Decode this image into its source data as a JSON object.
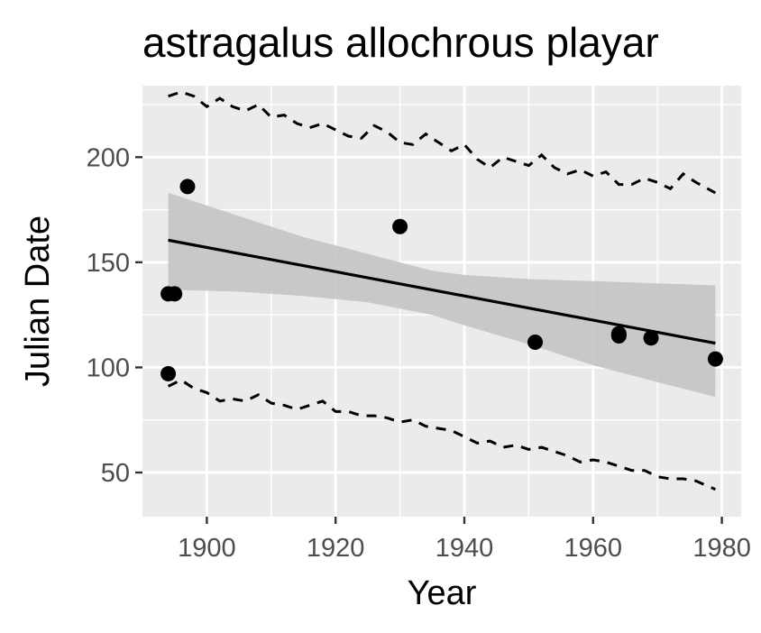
{
  "chart_data": {
    "type": "scatter",
    "title": "astragalus allochrous playar",
    "xlabel": "Year",
    "ylabel": "Julian Date",
    "xlim": [
      1890,
      1983
    ],
    "ylim": [
      29,
      234
    ],
    "x_ticks": [
      1900,
      1920,
      1940,
      1960,
      1980
    ],
    "y_ticks": [
      50,
      100,
      150,
      200
    ],
    "x_tick_labels": [
      "1900",
      "1920",
      "1940",
      "1960",
      "1980"
    ],
    "y_tick_labels": [
      "50",
      "100",
      "150",
      "200"
    ],
    "grid": true,
    "colors": {
      "panel_background": "#ebebeb",
      "grid": "#ffffff",
      "points": "#000000",
      "fit_line": "#000000",
      "ribbon": "#c4c4c4",
      "bounds": "#000000"
    },
    "points": [
      {
        "x": 1894,
        "y": 135
      },
      {
        "x": 1895,
        "y": 135
      },
      {
        "x": 1894,
        "y": 97
      },
      {
        "x": 1897,
        "y": 186
      },
      {
        "x": 1930,
        "y": 167
      },
      {
        "x": 1951,
        "y": 112
      },
      {
        "x": 1964,
        "y": 116
      },
      {
        "x": 1964,
        "y": 115
      },
      {
        "x": 1969,
        "y": 114
      },
      {
        "x": 1979,
        "y": 104
      }
    ],
    "trend_line": {
      "x": [
        1894,
        1979
      ],
      "y": [
        160.5,
        111.5
      ]
    },
    "confidence_band": {
      "x": [
        1894,
        1905,
        1915,
        1925,
        1935,
        1940,
        1950,
        1960,
        1970,
        1979
      ],
      "lower": [
        137,
        136,
        134,
        131,
        125,
        120,
        111,
        101,
        93,
        86
      ],
      "upper": [
        183,
        172,
        162,
        154,
        146,
        144,
        142,
        141,
        140,
        139
      ]
    },
    "upper_bound": {
      "x": [
        1894,
        1896,
        1898,
        1900,
        1902,
        1904,
        1906,
        1908,
        1910,
        1912,
        1914,
        1916,
        1918,
        1920,
        1922,
        1924,
        1926,
        1928,
        1930,
        1932,
        1934,
        1936,
        1938,
        1940,
        1942,
        1944,
        1946,
        1948,
        1950,
        1952,
        1954,
        1956,
        1958,
        1960,
        1962,
        1964,
        1966,
        1968,
        1970,
        1972,
        1974,
        1976,
        1979
      ],
      "y": [
        229,
        231,
        229,
        224,
        228,
        224,
        222,
        225,
        219,
        220,
        216,
        214,
        216,
        213,
        210,
        209,
        215,
        212,
        207,
        206,
        211,
        207,
        203,
        206,
        199,
        195,
        200,
        198,
        196,
        201,
        195,
        192,
        194,
        191,
        193,
        187,
        187,
        190,
        188,
        185,
        192,
        188,
        183
      ]
    },
    "lower_bound": {
      "x": [
        1894,
        1896,
        1898,
        1900,
        1902,
        1904,
        1906,
        1908,
        1910,
        1912,
        1914,
        1916,
        1918,
        1920,
        1922,
        1924,
        1926,
        1928,
        1930,
        1932,
        1934,
        1936,
        1938,
        1940,
        1942,
        1944,
        1946,
        1948,
        1950,
        1952,
        1954,
        1956,
        1958,
        1960,
        1962,
        1964,
        1966,
        1968,
        1970,
        1972,
        1974,
        1976,
        1979
      ],
      "y": [
        91,
        94,
        90,
        88,
        84,
        85,
        84,
        87,
        83,
        82,
        80,
        82,
        84,
        79,
        79,
        77,
        77,
        76,
        74,
        75,
        72,
        71,
        70,
        67,
        64,
        65,
        62,
        63,
        61,
        62,
        60,
        58,
        55,
        56,
        55,
        53,
        51,
        51,
        48,
        47,
        47,
        46,
        42
      ]
    }
  }
}
